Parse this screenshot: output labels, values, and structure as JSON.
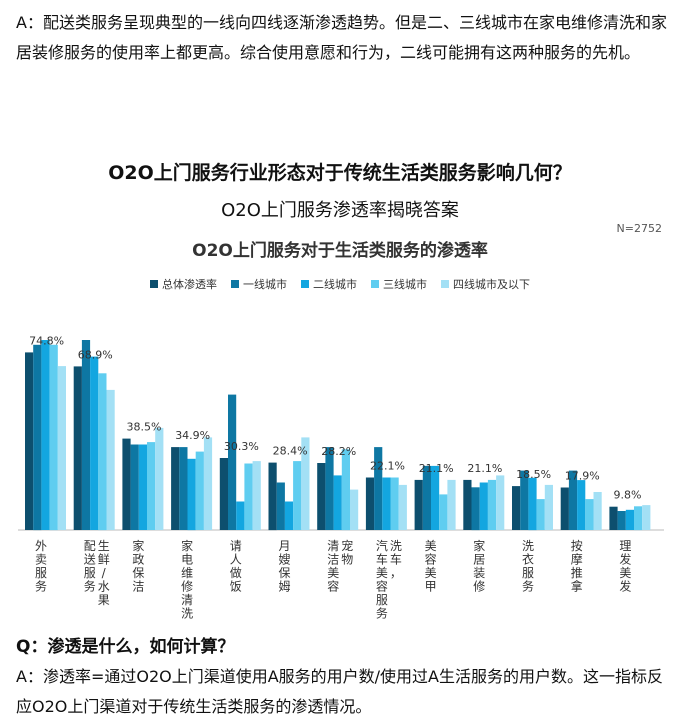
{
  "intro_text": "A：配送类服务呈现典型的一线向四线逐渐渗透趋势。但是二、三线城市在家电维修清洗和家居装修服务的使用率上都更高。综合使用意愿和行为，二线可能拥有这两种服务的先机。",
  "question": "Q：渗透是什么，如何计算？",
  "answer": "A：渗透率=通过O2O上门渠道使用A服务的用户数/使用过A生活服务的用户数。这一指标反应O2O上门渠道对于传统生活类服务的渗透情况。",
  "colors": {
    "overall": "#0d4f6e",
    "tier1": "#0e77a3",
    "tier2": "#13a6e0",
    "tier3": "#5fcdf0",
    "tier4": "#a3e0f5"
  },
  "chart_data": {
    "type": "bar",
    "title": "O2O上门服务行业形态对于传统生活类服务影响几何？",
    "subtitle": "O2O上门服务渗透率揭晓答案",
    "heading": "O2O上门服务对于生活类服务的渗透率",
    "sample": "N=2752",
    "legend_position": "top",
    "grid": false,
    "ylim": [
      0,
      80
    ],
    "categories": [
      "外卖服务",
      "配送服务 生鲜/水果",
      "家政保洁",
      "家电维修清洗",
      "请人做饭",
      "月嫂保姆",
      "清洁美容 宠物",
      "汽车美容服务 洗车，",
      "美容美甲",
      "家居装修",
      "洗衣服务",
      "按摩推拿",
      "理发美发"
    ],
    "data_labels": [
      "74.8%",
      "68.9%",
      "38.5%",
      "34.9%",
      "30.3%",
      "28.4%",
      "28.2%",
      "22.1%",
      "21.1%",
      "21.1%",
      "18.5%",
      "17.9%",
      "9.8%"
    ],
    "series": [
      {
        "name": "总体渗透率",
        "values": [
          74.8,
          68.9,
          38.5,
          34.9,
          30.3,
          28.4,
          28.2,
          22.1,
          21.1,
          21.1,
          18.5,
          17.9,
          9.8
        ]
      },
      {
        "name": "一线城市",
        "values": [
          78.0,
          80.0,
          36.0,
          34.9,
          57.0,
          20.0,
          34.9,
          34.9,
          27.0,
          18.0,
          25.0,
          25.0,
          8.0
        ]
      },
      {
        "name": "二线城市",
        "values": [
          80.0,
          73.0,
          36.0,
          30.0,
          12.0,
          12.0,
          23.0,
          22.1,
          27.0,
          20.0,
          22.0,
          21.0,
          8.5
        ]
      },
      {
        "name": "三线城市",
        "values": [
          78.0,
          66.0,
          37.0,
          33.0,
          28.0,
          29.0,
          34.0,
          22.1,
          15.0,
          21.1,
          13.0,
          13.0,
          10.0
        ]
      },
      {
        "name": "四线城市及以下",
        "values": [
          69.0,
          59.0,
          43.0,
          39.0,
          29.0,
          39.0,
          17.0,
          19.0,
          21.1,
          23.0,
          19.0,
          16.0,
          10.5
        ]
      }
    ]
  }
}
